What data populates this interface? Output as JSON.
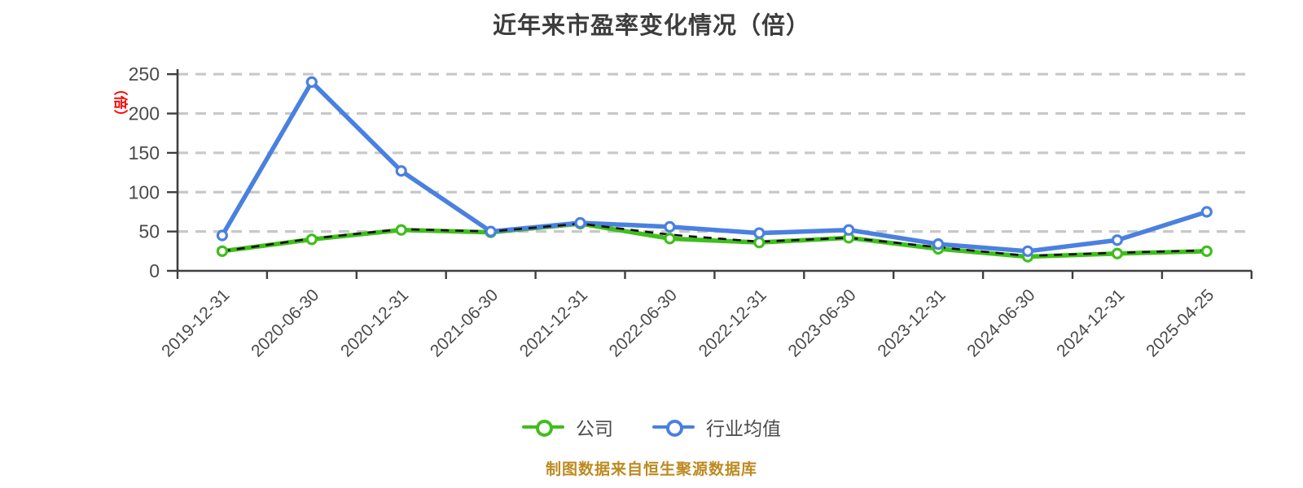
{
  "title": "近年来市盈率变化情况（倍）",
  "y_axis": {
    "unit_label": "（倍）",
    "tick_labels": [
      "0",
      "50",
      "100",
      "150",
      "200",
      "250"
    ]
  },
  "legend": {
    "items": [
      {
        "label": "公司",
        "color": "#3fbe1c"
      },
      {
        "label": "行业均值",
        "color": "#4a80e0"
      }
    ]
  },
  "source": "制图数据来自恒生聚源数据库",
  "colors": {
    "background": "#ffffff",
    "title_text": "#3d3d3d",
    "axis_line": "#3f3f3f",
    "axis_text": "#4a4a4a",
    "gridline": "#c8c8c8",
    "unit_label_red": "#ff0000",
    "company_green": "#3fbe1c",
    "industry_blue": "#4a80e0",
    "overlay_dash": "#111111",
    "source_gold": "#bd8a20"
  },
  "chart_data": {
    "type": "line",
    "title": "近年来市盈率变化情况（倍）",
    "xlabel": "",
    "ylabel": "（倍）",
    "ylim": [
      0,
      250
    ],
    "y_ticks": [
      0,
      50,
      100,
      150,
      200,
      250
    ],
    "grid": "dashed-horizontal",
    "legend_position": "bottom",
    "categories": [
      "2019-12-31",
      "2020-06-30",
      "2020-12-31",
      "2021-06-30",
      "2021-12-31",
      "2022-06-30",
      "2022-12-31",
      "2023-06-30",
      "2023-12-31",
      "2024-06-30",
      "2024-12-31",
      "2025-04-25"
    ],
    "series": [
      {
        "name": "公司",
        "color": "#3fbe1c",
        "line_style": "solid",
        "marker": "circle",
        "values": [
          25,
          40,
          52,
          49,
          60,
          41,
          36,
          42,
          28,
          18,
          22,
          25
        ]
      },
      {
        "name": "行业均值",
        "color": "#4a80e0",
        "line_style": "solid",
        "marker": "circle",
        "values": [
          45,
          240,
          127,
          50,
          61,
          56,
          48,
          52,
          34,
          25,
          39,
          75
        ]
      },
      {
        "name": "",
        "color": "#111111",
        "line_style": "dashed",
        "marker": "none",
        "values": [
          25,
          41,
          53,
          50,
          60,
          46,
          37,
          42,
          30,
          19,
          23,
          26
        ]
      }
    ]
  }
}
